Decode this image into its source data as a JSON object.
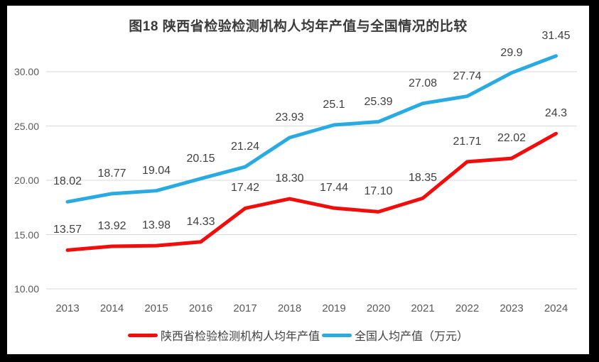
{
  "chart_data": {
    "type": "line",
    "title": "图18 陕西省检验检测机构人均年产值与全国情况的比较",
    "categories": [
      "2013",
      "2014",
      "2015",
      "2016",
      "2017",
      "2018",
      "2019",
      "2020",
      "2021",
      "2022",
      "2023",
      "2024"
    ],
    "series": [
      {
        "name": "陕西省检验检测机构人均年产值",
        "color": "#f20d0d",
        "values": [
          13.57,
          13.92,
          13.98,
          14.33,
          17.42,
          18.3,
          17.44,
          17.1,
          18.35,
          21.71,
          22.02,
          24.3
        ],
        "labels": [
          "13.57",
          "13.92",
          "13.98",
          "14.33",
          "17.42",
          "18.30",
          "17.44",
          "17.10",
          "18.35",
          "21.71",
          "22.02",
          "24.3"
        ]
      },
      {
        "name": "全国人均产值（万元）",
        "color": "#29abe2",
        "values": [
          18.02,
          18.77,
          19.04,
          20.15,
          21.24,
          23.93,
          25.1,
          25.39,
          27.08,
          27.74,
          29.9,
          31.45
        ],
        "labels": [
          "18.02",
          "18.77",
          "19.04",
          "20.15",
          "21.24",
          "23.93",
          "25.1",
          "25.39",
          "27.08",
          "27.74",
          "29.9",
          "31.45"
        ]
      }
    ],
    "xlabel": "",
    "ylabel": "",
    "ylim": [
      10,
      30
    ],
    "ytick_step": 5,
    "ytick_labels": [
      "10.00",
      "15.00",
      "20.00",
      "25.00",
      "30.00"
    ],
    "grid": "horizontal",
    "legend_position": "bottom",
    "colors": {
      "gridline": "#d9d9d9",
      "axis_text": "#595959",
      "data_label_text": "#404040",
      "title_text": "#3b3b3b",
      "background": "#ffffff",
      "frame": "#000000"
    }
  }
}
